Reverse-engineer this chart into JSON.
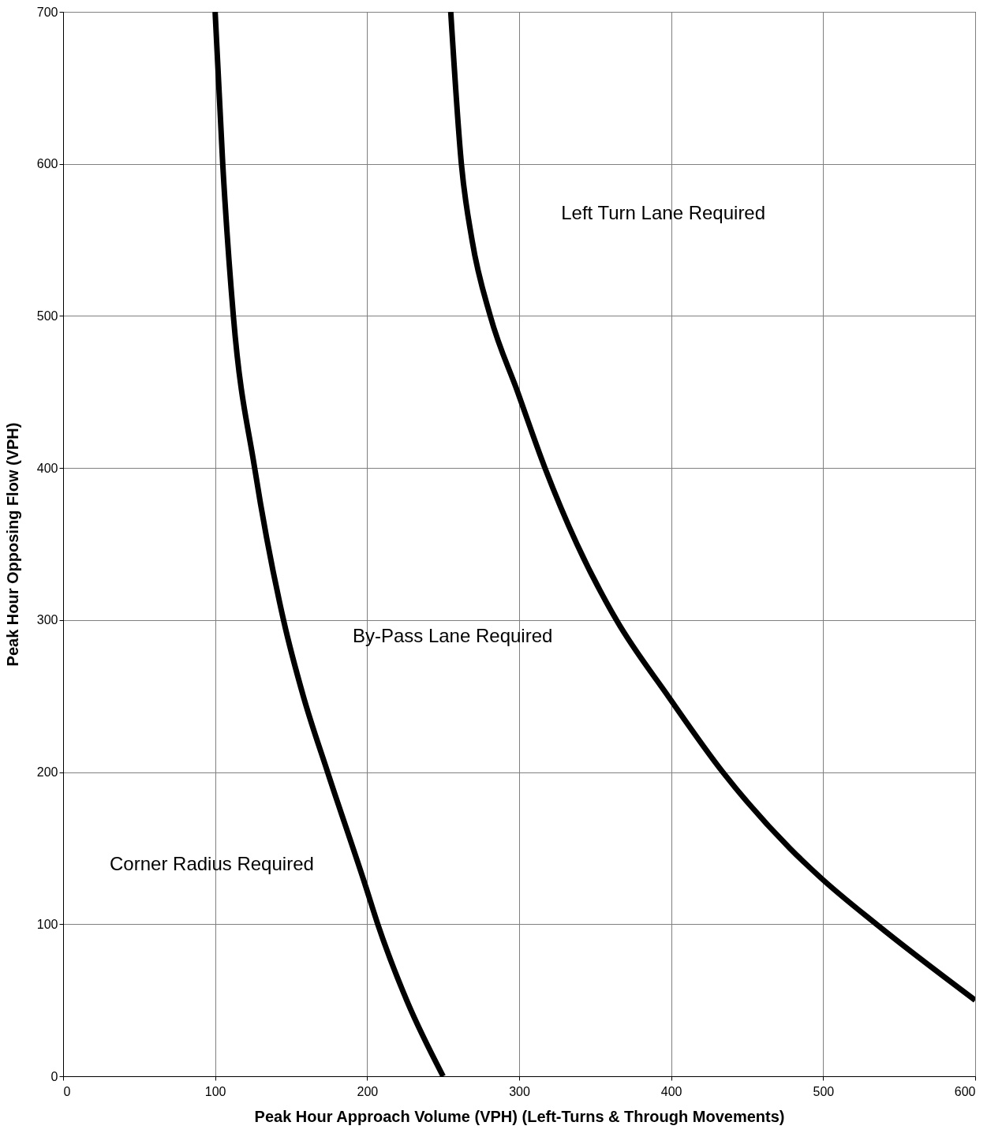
{
  "chart_data": {
    "type": "line",
    "xlabel": "Peak Hour Approach Volume (VPH) (Left-Turns & Through Movements)",
    "ylabel": "Peak Hour Opposing Flow (VPH)",
    "xlim": [
      0,
      600
    ],
    "ylim": [
      0,
      700
    ],
    "xticks": [
      0,
      100,
      200,
      300,
      400,
      500,
      600
    ],
    "yticks": [
      0,
      100,
      200,
      300,
      400,
      500,
      600,
      700
    ],
    "grid": true,
    "marker": "none",
    "line_style": "solid",
    "series": [
      {
        "color": "#000000",
        "x": [
          100,
          105,
          112,
          126,
          145,
          158,
          174,
          199,
          207,
          226,
          250
        ],
        "values": [
          700,
          600,
          500,
          400,
          300,
          250,
          200,
          125,
          100,
          50,
          0
        ]
      },
      {
        "color": "#000000",
        "x": [
          255,
          262,
          269,
          281,
          299,
          317,
          338,
          364,
          398,
          434,
          478,
          499,
          535,
          600
        ],
        "values": [
          700,
          600,
          550,
          500,
          450,
          400,
          350,
          300,
          250,
          200,
          150,
          130,
          100,
          50
        ]
      }
    ],
    "annotations": [
      "Left Turn Lane Required",
      "By-Pass Lane Required",
      "Corner Radius Required"
    ]
  }
}
